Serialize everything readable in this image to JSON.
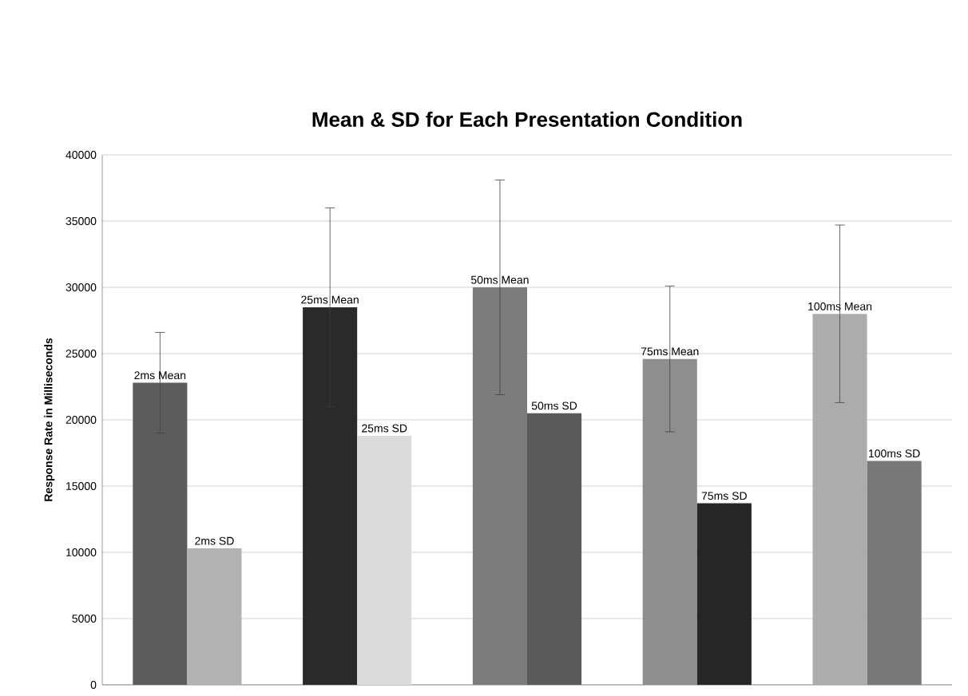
{
  "chart_data": {
    "type": "bar",
    "title": "Mean & SD for Each Presentation Condition",
    "ylabel": "Response Rate in Milliseconds",
    "categories": [
      null,
      null,
      null,
      null,
      null
    ],
    "series": [
      {
        "colors": [
          "#5c5c5c",
          "#2a2a2a",
          "#7c7c7c",
          "#8e8e8e",
          "#acacac"
        ],
        "values": [
          22800,
          28500,
          30000,
          24600,
          28000
        ],
        "errors": [
          3800,
          7500,
          8100,
          5500,
          6700
        ]
      },
      {
        "colors": [
          "#b2b2b2",
          "#dcdcdc",
          "#5a5a5a",
          "#262626",
          "#787878"
        ],
        "values": [
          10300,
          18800,
          20500,
          13700,
          16900
        ]
      }
    ],
    "annotations": [
      {
        "text": "2ms Mean",
        "y": 22800
      },
      {
        "text": "2ms SD",
        "y": 10300
      },
      {
        "text": "25ms Mean",
        "y": 28500
      },
      {
        "text": "25ms SD",
        "y": 18800
      },
      {
        "text": "50ms Mean",
        "y": 30000
      },
      {
        "text": "50ms SD",
        "y": 20500
      },
      {
        "text": "75ms Mean",
        "y": 24600
      },
      {
        "text": "75ms SD",
        "y": 13700
      },
      {
        "text": "100ms Mean",
        "y": 28000
      },
      {
        "text": "100ms SD",
        "y": 16900
      }
    ],
    "ylim": [
      0,
      40000
    ],
    "yticks": [
      0,
      5000,
      10000,
      15000,
      20000,
      25000,
      30000,
      35000,
      40000
    ],
    "grid": "y",
    "tick_labels": "y"
  }
}
